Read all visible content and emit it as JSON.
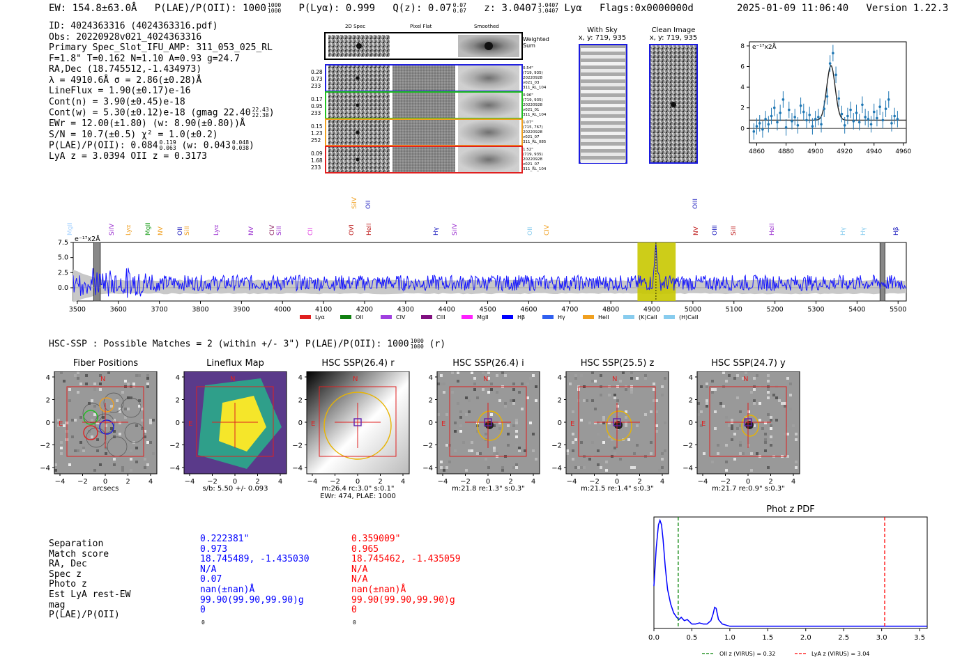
{
  "header": {
    "ew": "EW: 154.8±63.0Å",
    "plae_label": "P(LAE)/P(OII): 1000",
    "plae_hi": "1000",
    "plae_lo": "1000",
    "plya": "P(Lyα): 0.999",
    "qz_label": "Q(z): 0.07",
    "qz_hi": "0.07",
    "qz_lo": "0.07",
    "z_label": "z: 3.0407",
    "z_hi": "3.0407",
    "z_lo": "3.0407",
    "z_line": "Lyα",
    "flags": "Flags:0x0000000d",
    "datetime": "2025-01-09 11:06:40",
    "version": "Version 1.22.3"
  },
  "info": {
    "id": "ID: 4024363316 (4024363316.pdf)",
    "obs": "Obs: 20220928v021_4024363316",
    "primary": "Primary Spec_Slot_IFU_AMP: 311_053_025_RL",
    "params": "F=1.8\"  T=0.162  N=1.10  A=0.93  g=24.7",
    "radec": "RA,Dec (18.745512,-1.434973)",
    "lambda": "λ = 4910.6Å   σ = 2.86(±0.28)Å",
    "lineflux": "LineFlux = 1.90(±0.17)e-16",
    "contn": "Cont(n) = 3.90(±0.45)e-18",
    "contw": "Cont(w) = 5.30(±0.12)e-18 (gmag 22.40",
    "contw_hi": "22.43",
    "contw_lo": "22.38",
    "ewr": "EWr = 12.00(±1.80) (w: 8.90(±0.80))Å",
    "sn": "S/N = 10.7(±0.5)  χ² = 1.0(±0.2)",
    "plae": "P(LAE)/P(OII): 0.084",
    "plae_hi": "0.119",
    "plae_lo": "0.063",
    "plae_w": "(w: 0.043",
    "plae_w_hi": "0.048",
    "plae_w_lo": "0.038",
    "lyaz": "LyA z = 3.0394   OII z = 0.3173"
  },
  "cutouts": {
    "col_titles": [
      "2D Spec",
      "Pixel Flat",
      "Smoothed"
    ],
    "weighted_sum": "Weighted Sum",
    "fibers": [
      {
        "stats": [
          "0.28",
          "0.73",
          "233"
        ],
        "meta": [
          "0.54\"",
          "(719, 935)",
          "20220928",
          "v021_03",
          "311_RL_104"
        ],
        "color": "#2020e0"
      },
      {
        "stats": [
          "0.17",
          "0.95",
          "233"
        ],
        "meta": [
          "0.96\"",
          "(719, 935)",
          "20220928",
          "v021_01",
          "311_RL_104"
        ],
        "color": "#20c020"
      },
      {
        "stats": [
          "0.15",
          "1.23",
          "252"
        ],
        "meta": [
          "1.07\"",
          "(715, 767)",
          "20220928",
          "v021_07",
          "311_RL_085"
        ],
        "color": "#f0a020"
      },
      {
        "stats": [
          "0.09",
          "1.68",
          "233"
        ],
        "meta": [
          "1.52\"",
          "(719, 935)",
          "20220928",
          "v021_07",
          "311_RL_104"
        ],
        "color": "#e02020"
      }
    ],
    "with_sky": "With Sky",
    "with_sky_xy": "x, y: 719, 935",
    "clean": "Clean Image",
    "clean_xy": "x, y: 719, 935"
  },
  "zoom_plot": {
    "ylabel": "e⁻¹⁷x2Å",
    "xticks": [
      "4860",
      "4880",
      "4900",
      "4920",
      "4940",
      "4960"
    ],
    "yticks": [
      "0",
      "2",
      "4",
      "6",
      "8"
    ]
  },
  "spectrum": {
    "ylabel": "e⁻¹⁷x2Å",
    "xticks": [
      "3500",
      "3600",
      "3700",
      "3800",
      "3900",
      "4000",
      "4100",
      "4200",
      "4300",
      "4400",
      "4500",
      "4600",
      "4700",
      "4800",
      "4900",
      "5000",
      "5100",
      "5200",
      "5300",
      "5400",
      "5500"
    ],
    "yticks": [
      "7.5",
      "5.0",
      "2.5",
      "0.0"
    ],
    "line_labels": [
      {
        "name": "MgII",
        "color": "#aad4ff"
      },
      {
        "name": "SiIV",
        "color": "#9b30d0"
      },
      {
        "name": "Lyα",
        "color": "#f0a020"
      },
      {
        "name": "MgII",
        "color": "#20a020"
      },
      {
        "name": "NV",
        "color": "#f0a020"
      },
      {
        "name": "OII",
        "color": "#2020c0"
      },
      {
        "name": "SiII",
        "color": "#f0a020"
      },
      {
        "name": "Lyα",
        "color": "#9b30d0"
      },
      {
        "name": "NV",
        "color": "#9b30d0"
      },
      {
        "name": "CIV",
        "color": "#8b2060"
      },
      {
        "name": "SiII",
        "color": "#9b30d0"
      },
      {
        "name": "CII",
        "color": "#e040e0"
      },
      {
        "name": "OVI",
        "color": "#c02020"
      },
      {
        "name": "SiIV",
        "color": "#f0a020"
      },
      {
        "name": "HeII",
        "color": "#c02020"
      },
      {
        "name": "OII",
        "color": "#2020c0"
      },
      {
        "name": "Hγ",
        "color": "#2020c0"
      },
      {
        "name": "SiIV",
        "color": "#9b30d0"
      },
      {
        "name": "OII",
        "color": "#88ccee"
      },
      {
        "name": "CIV",
        "color": "#f0a020"
      },
      {
        "name": "OIII",
        "color": "#2020c0"
      },
      {
        "name": "NV",
        "color": "#c02020"
      },
      {
        "name": "OIII",
        "color": "#2020c0"
      },
      {
        "name": "SiII",
        "color": "#c02020"
      },
      {
        "name": "HeII",
        "color": "#9b30d0"
      },
      {
        "name": "Hγ",
        "color": "#88ccee"
      },
      {
        "name": "Hγ",
        "color": "#88ccee"
      },
      {
        "name": "Hβ",
        "color": "#2020c0"
      }
    ],
    "legend": [
      {
        "name": "Lyα",
        "color": "#e02020"
      },
      {
        "name": "OII",
        "color": "#108010"
      },
      {
        "name": "CIV",
        "color": "#a040e0"
      },
      {
        "name": "CIII",
        "color": "#801080"
      },
      {
        "name": "MgII",
        "color": "#ff20ff"
      },
      {
        "name": "Hβ",
        "color": "#0000ff"
      },
      {
        "name": "Hγ",
        "color": "#3060f0"
      },
      {
        "name": "HeII",
        "color": "#f0a020"
      },
      {
        "name": "(K)CaII",
        "color": "#88ccee"
      },
      {
        "name": "(H)CaII",
        "color": "#88ccee"
      }
    ]
  },
  "hsc": {
    "title": "HSC-SSP : Possible Matches = 2 (within +/- 3\")  P(LAE)/P(OII): 1000",
    "title_hi": "1000",
    "title_lo": "1000",
    "title_tail": "(r)",
    "panels": [
      {
        "title": "Fiber Positions",
        "caption": [
          "arcsecs"
        ]
      },
      {
        "title": "Lineflux Map",
        "caption": [
          "s/b: 5.50 +/- 0.093"
        ]
      },
      {
        "title": "HSC SSP(26.4) r",
        "caption": [
          "m:26.4 rc:3.0\"  s:0.1\"",
          "EWr: 474, PLAE: 1000"
        ]
      },
      {
        "title": "HSC SSP(26.4) i",
        "caption": [
          "m:21.8  re:1.3\"  s:0.3\""
        ]
      },
      {
        "title": "HSC SSP(25.5) z",
        "caption": [
          "m:21.5  re:1.4\"  s:0.3\""
        ]
      },
      {
        "title": "HSC SSP(24.7) y",
        "caption": [
          "m:21.7  re:0.9\"  s:0.3\""
        ]
      }
    ],
    "ticks": [
      "4",
      "2",
      "0",
      "−2",
      "−4"
    ],
    "xticks": [
      "−4",
      "−2",
      "0",
      "2",
      "4"
    ],
    "north": "N",
    "east": "E"
  },
  "matches": {
    "labels": [
      "Separation",
      "Match score",
      "RA, Dec",
      "Spec z",
      "Photo z",
      "Est LyA rest-EW",
      "mag",
      "P(LAE)/P(OII)"
    ],
    "m1": [
      "0.222381\"",
      "0.973",
      "18.745489, -1.435030",
      "N/A",
      "0.07",
      "nan(±nan)Å",
      "99.90(99.90,99.90)g",
      "0"
    ],
    "m2": [
      "0.359009\"",
      "0.965",
      "18.745462, -1.435059",
      "N/A",
      "N/A",
      "nan(±nan)Å",
      "99.90(99.90,99.90)g",
      "0"
    ],
    "m1_sub": "0",
    "m2_sub": "0",
    "m1_color": "#0000ff",
    "m2_color": "#ff0000"
  },
  "photoz": {
    "title": "Phot z PDF",
    "xticks": [
      "0.0",
      "0.5",
      "1.0",
      "1.5",
      "2.0",
      "2.5",
      "3.0",
      "3.5"
    ],
    "legend_oii": "OII z (VIRUS) = 0.32",
    "legend_lya": "LyA z (VIRUS) = 3.04"
  },
  "chart_data": [
    {
      "type": "scatter",
      "title": "",
      "xlabel": "",
      "ylabel": "e-17x2Å",
      "xlim": [
        4855,
        4962
      ],
      "ylim": [
        -1.4,
        8.4
      ],
      "x": [
        4858,
        4860,
        4862,
        4864,
        4866,
        4868,
        4870,
        4872,
        4874,
        4876,
        4878,
        4880,
        4882,
        4884,
        4886,
        4888,
        4890,
        4892,
        4894,
        4896,
        4898,
        4900,
        4902,
        4904,
        4906,
        4908,
        4910,
        4912,
        4914,
        4916,
        4918,
        4920,
        4922,
        4924,
        4926,
        4928,
        4930,
        4932,
        4934,
        4936,
        4938,
        4940,
        4942,
        4944,
        4946,
        4948,
        4950,
        4952,
        4954,
        4956
      ],
      "y": [
        -0.3,
        0.2,
        0.5,
        -0.1,
        0.9,
        0.4,
        1.2,
        2.0,
        0.6,
        1.5,
        2.8,
        0.1,
        1.8,
        0.7,
        1.1,
        0.3,
        2.2,
        1.6,
        0.8,
        1.3,
        0.2,
        0.9,
        1.1,
        0.4,
        1.9,
        3.1,
        6.3,
        7.3,
        5.2,
        2.9,
        1.4,
        0.3,
        1.2,
        1.8,
        0.7,
        1.5,
        0.6,
        2.3,
        1.1,
        0.9,
        0.4,
        1.6,
        1.0,
        2.1,
        0.8,
        1.9,
        2.8,
        0.5,
        1.2,
        0.9
      ],
      "fit_gaussian": {
        "center": 4910.6,
        "sigma": 2.86,
        "amp": 5.3,
        "baseline": 0.8
      }
    },
    {
      "type": "line",
      "title": "",
      "xlabel": "",
      "ylabel": "e-17x2Å",
      "xlim": [
        3490,
        5520
      ],
      "ylim": [
        -2.2,
        7.5
      ],
      "feature_band": [
        4865,
        4958
      ],
      "masked_bands": [
        [
          3540,
          3556
        ],
        [
          5456,
          5468
        ]
      ],
      "peak": {
        "x": 4910,
        "y": 7.2
      }
    },
    {
      "type": "line",
      "title": "Phot z PDF",
      "xlabel": "",
      "ylabel": "",
      "xlim": [
        0,
        3.6
      ],
      "ylim": [
        0,
        1
      ],
      "x": [
        0.0,
        0.03,
        0.06,
        0.08,
        0.1,
        0.12,
        0.15,
        0.18,
        0.22,
        0.26,
        0.3,
        0.33,
        0.36,
        0.4,
        0.44,
        0.5,
        0.55,
        0.6,
        0.65,
        0.7,
        0.75,
        0.78,
        0.8,
        0.82,
        0.85,
        0.9,
        0.95,
        1.0,
        1.2,
        1.5,
        2.0,
        2.5,
        3.0,
        3.5,
        3.6
      ],
      "y": [
        0.38,
        0.72,
        0.93,
        0.97,
        0.93,
        0.8,
        0.55,
        0.35,
        0.22,
        0.14,
        0.1,
        0.08,
        0.1,
        0.07,
        0.08,
        0.04,
        0.04,
        0.05,
        0.04,
        0.04,
        0.07,
        0.13,
        0.19,
        0.18,
        0.08,
        0.04,
        0.03,
        0.02,
        0.02,
        0.02,
        0.02,
        0.02,
        0.02,
        0.02,
        0.02
      ],
      "vlines": [
        {
          "x": 0.32,
          "label": "OII z (VIRUS) = 0.32",
          "color": "#008000"
        },
        {
          "x": 3.04,
          "label": "LyA z (VIRUS) = 3.04",
          "color": "#ff0000"
        }
      ]
    }
  ]
}
